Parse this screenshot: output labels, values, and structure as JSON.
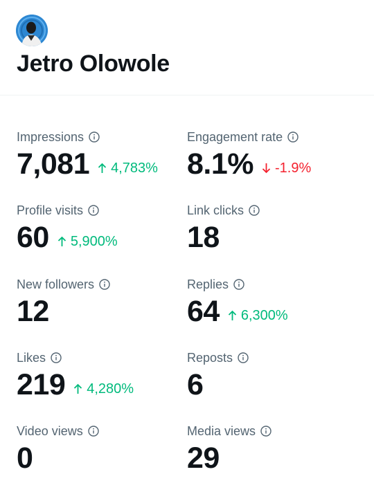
{
  "profile": {
    "name": "Jetro Olowole"
  },
  "colors": {
    "text": "#0f1419",
    "secondary": "#536471",
    "positive": "#00ba7c",
    "negative": "#f4212e"
  },
  "metrics": [
    {
      "label": "Impressions",
      "value": "7,081",
      "change": "4,783%",
      "direction": "up"
    },
    {
      "label": "Engagement rate",
      "value": "8.1%",
      "change": "-1.9%",
      "direction": "down"
    },
    {
      "label": "Profile visits",
      "value": "60",
      "change": "5,900%",
      "direction": "up"
    },
    {
      "label": "Link clicks",
      "value": "18",
      "change": "",
      "direction": ""
    },
    {
      "label": "New followers",
      "value": "12",
      "change": "",
      "direction": ""
    },
    {
      "label": "Replies",
      "value": "64",
      "change": "6,300%",
      "direction": "up"
    },
    {
      "label": "Likes",
      "value": "219",
      "change": "4,280%",
      "direction": "up"
    },
    {
      "label": "Reposts",
      "value": "6",
      "change": "",
      "direction": ""
    },
    {
      "label": "Video views",
      "value": "0",
      "change": "",
      "direction": ""
    },
    {
      "label": "Media views",
      "value": "29",
      "change": "",
      "direction": ""
    }
  ]
}
